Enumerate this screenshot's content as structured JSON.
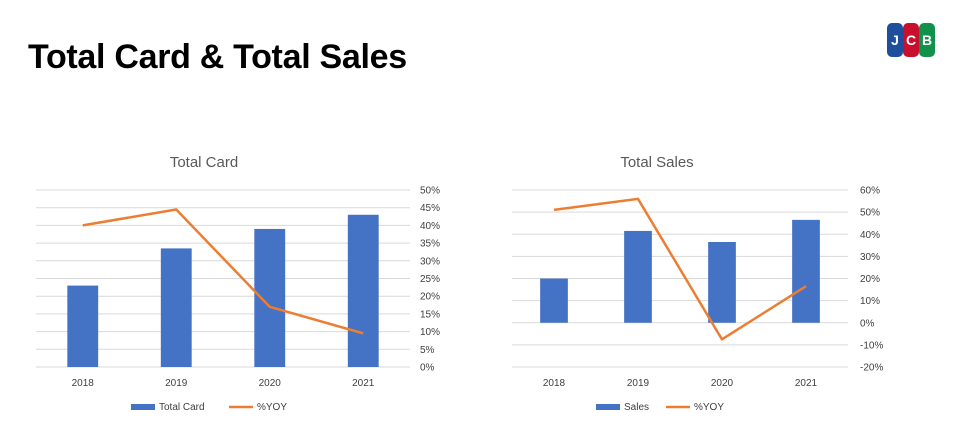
{
  "slide": {
    "title": "Total Card & Total Sales"
  },
  "logo": {
    "text": "JCB",
    "colors": [
      "#1f4e9c",
      "#c8102e",
      "#10924a"
    ]
  },
  "colors": {
    "bar": "#4472c4",
    "line": "#ed7d31",
    "grid": "#d9d9d9"
  },
  "chart_data": [
    {
      "type": "bar",
      "title": "Total Card",
      "categories": [
        "2018",
        "2019",
        "2020",
        "2021"
      ],
      "series": [
        {
          "name": "Total Card",
          "type": "bar",
          "axis": "left",
          "values": [
            23,
            33.5,
            39,
            43
          ]
        },
        {
          "name": "%YOY",
          "type": "line",
          "axis": "right",
          "values": [
            40,
            44.5,
            17,
            9.5
          ]
        }
      ],
      "ylim_left": [
        0,
        50
      ],
      "ylim_right": [
        0,
        50
      ],
      "y_right_ticks": [
        "0%",
        "5%",
        "10%",
        "15%",
        "20%",
        "25%",
        "30%",
        "35%",
        "40%",
        "45%",
        "50%"
      ],
      "y_right_tick_values": [
        0,
        5,
        10,
        15,
        20,
        25,
        30,
        35,
        40,
        45,
        50
      ],
      "left_axis_labels_shown": false,
      "grid": true,
      "legend": "bottom"
    },
    {
      "type": "bar",
      "title": "Total Sales",
      "categories": [
        "2018",
        "2019",
        "2020",
        "2021"
      ],
      "series": [
        {
          "name": "Sales",
          "type": "bar",
          "axis": "left",
          "values": [
            20,
            41.5,
            36.5,
            46.5
          ]
        },
        {
          "name": "%YOY",
          "type": "line",
          "axis": "right",
          "values": [
            51,
            56,
            -7.5,
            16.5
          ]
        }
      ],
      "ylim_left": [
        -20,
        60
      ],
      "ylim_right": [
        -20,
        60
      ],
      "y_right_ticks": [
        "-20%",
        "-10%",
        "0%",
        "10%",
        "20%",
        "30%",
        "40%",
        "50%",
        "60%"
      ],
      "y_right_tick_values": [
        -20,
        -10,
        0,
        10,
        20,
        30,
        40,
        50,
        60
      ],
      "left_axis_labels_shown": false,
      "grid": true,
      "legend": "bottom"
    }
  ]
}
